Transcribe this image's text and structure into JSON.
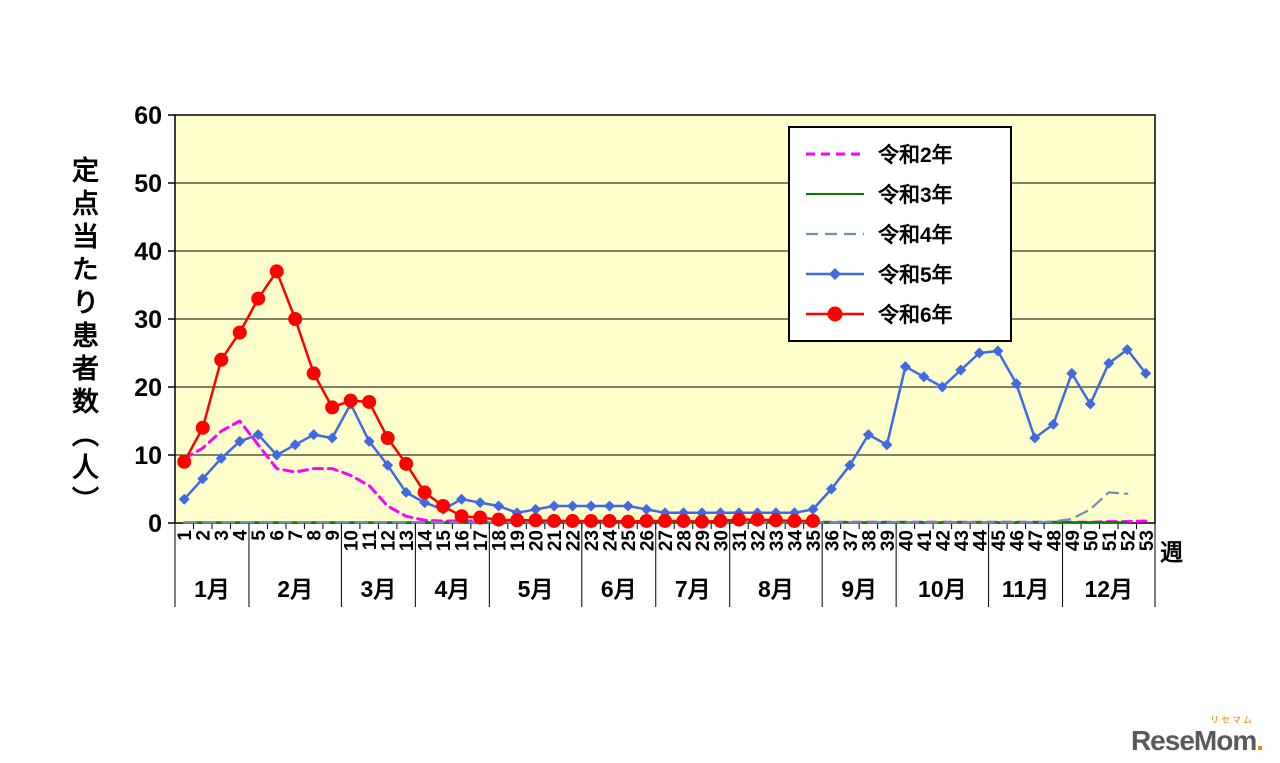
{
  "chart_data": {
    "type": "line",
    "title": "",
    "ylabel": "定点当たり患者数（人）",
    "xlabel": "週",
    "ylim": [
      0,
      60
    ],
    "yticks": [
      0,
      10,
      20,
      30,
      40,
      50,
      60
    ],
    "grid": "horizontal",
    "legend_position": "top-right-inside",
    "colors": {
      "plot_background": "#ffffcc",
      "axis": "#000000"
    },
    "x_labels": [
      "1",
      "2",
      "3",
      "4",
      "5",
      "6",
      "7",
      "8",
      "9",
      "10",
      "11",
      "12",
      "13",
      "14",
      "15",
      "16",
      "17",
      "18",
      "19",
      "20",
      "21",
      "22",
      "23",
      "24",
      "25",
      "26",
      "27",
      "28",
      "29",
      "30",
      "31",
      "32",
      "33",
      "34",
      "35",
      "36",
      "37",
      "38",
      "39",
      "40",
      "41",
      "42",
      "43",
      "44",
      "45",
      "46",
      "47",
      "48",
      "49",
      "50",
      "51",
      "52",
      "53"
    ],
    "months": [
      {
        "label": "1月",
        "span": 4
      },
      {
        "label": "2月",
        "span": 5
      },
      {
        "label": "3月",
        "span": 4
      },
      {
        "label": "4月",
        "span": 4
      },
      {
        "label": "5月",
        "span": 5
      },
      {
        "label": "6月",
        "span": 4
      },
      {
        "label": "7月",
        "span": 4
      },
      {
        "label": "8月",
        "span": 5
      },
      {
        "label": "9月",
        "span": 4
      },
      {
        "label": "10月",
        "span": 5
      },
      {
        "label": "11月",
        "span": 4
      },
      {
        "label": "12月",
        "span": 5
      }
    ],
    "series": [
      {
        "id": "reiwa2",
        "name": "令和2年",
        "color": "#ff00ff",
        "style": "dashed",
        "dash": "9 6",
        "width": 3,
        "marker": "none",
        "values": [
          9.5,
          11,
          13.5,
          15,
          11.5,
          8,
          7.5,
          8,
          8,
          7,
          5.5,
          2.5,
          1,
          0.4,
          0.3,
          0.3,
          0.3,
          0.2,
          0.2,
          0.2,
          0.1,
          0.1,
          0.1,
          0.1,
          0.1,
          0.1,
          0.1,
          0.1,
          0.1,
          0.1,
          0.1,
          0.1,
          0.1,
          0.1,
          0.1,
          0.1,
          0.1,
          0.1,
          0.1,
          0.1,
          0.1,
          0.1,
          0.1,
          0.1,
          0.1,
          0.1,
          0.1,
          0.1,
          0.1,
          0.1,
          0.2,
          0.2,
          0.3
        ]
      },
      {
        "id": "reiwa3",
        "name": "令和3年",
        "color": "#008000",
        "style": "solid",
        "width": 2,
        "marker": "none",
        "values": [
          0.1,
          0.1,
          0.1,
          0.1,
          0.1,
          0.1,
          0.1,
          0.1,
          0.1,
          0.1,
          0.1,
          0.1,
          0.1,
          0.1,
          0.1,
          0.1,
          0.1,
          0.1,
          0.1,
          0.1,
          0.1,
          0.1,
          0.1,
          0.1,
          0.1,
          0.1,
          0.1,
          0.1,
          0.1,
          0.1,
          0.1,
          0.1,
          0.1,
          0.1,
          0.1,
          0.1,
          0.1,
          0.1,
          0.1,
          0.1,
          0.1,
          0.1,
          0.1,
          0.1,
          0.1,
          0.1,
          0.1,
          0.1,
          0.1,
          0.1,
          0.1,
          0.1
        ]
      },
      {
        "id": "reiwa4",
        "name": "令和4年",
        "color": "#6e8fb4",
        "style": "dashed",
        "dash": "12 7",
        "width": 2.2,
        "marker": "none",
        "values": [
          0.1,
          0.1,
          0.1,
          0.1,
          0.1,
          0.1,
          0.1,
          0.1,
          0.1,
          0.1,
          0.1,
          0.1,
          0.1,
          0.1,
          0.1,
          0.1,
          0.1,
          0.1,
          0.1,
          0.1,
          0.1,
          0.1,
          0.1,
          0.1,
          0.1,
          0.1,
          0.1,
          0.1,
          0.1,
          0.1,
          0.1,
          0.1,
          0.1,
          0.1,
          0.1,
          0.1,
          0.1,
          0.1,
          0.1,
          0.1,
          0.1,
          0.1,
          0.1,
          0.1,
          0.1,
          0.1,
          0.1,
          0.2,
          0.6,
          2,
          4.5,
          4.3
        ]
      },
      {
        "id": "reiwa5",
        "name": "令和5年",
        "color": "#4169e1",
        "style": "solid",
        "width": 2.5,
        "marker": "diamond",
        "values": [
          3.5,
          6.5,
          9.5,
          12,
          13,
          10,
          11.5,
          13,
          12.5,
          17.5,
          12,
          8.5,
          4.5,
          3,
          2,
          3.5,
          3,
          2.5,
          1.5,
          2,
          2.5,
          2.5,
          2.5,
          2.5,
          2.5,
          2,
          1.5,
          1.5,
          1.5,
          1.5,
          1.5,
          1.5,
          1.5,
          1.5,
          2,
          5,
          8.5,
          13,
          11.5,
          23,
          21.5,
          20,
          22.5,
          25,
          25.3,
          20.5,
          12.5,
          14.5,
          22,
          17.5,
          23.5,
          25.5,
          22
        ]
      },
      {
        "id": "reiwa6",
        "name": "令和6年",
        "color": "#ff0000",
        "style": "solid",
        "width": 2.5,
        "marker": "circle",
        "values": [
          9,
          14,
          24,
          28,
          33,
          37,
          30,
          22,
          17,
          18,
          17.8,
          12.5,
          8.7,
          4.5,
          2.5,
          1,
          0.8,
          0.5,
          0.4,
          0.4,
          0.3,
          0.3,
          0.3,
          0.3,
          0.2,
          0.3,
          0.3,
          0.3,
          0.2,
          0.3,
          0.5,
          0.5,
          0.4,
          0.3,
          0.3,
          null,
          null,
          null,
          null,
          null,
          null,
          null,
          null,
          null,
          null,
          null,
          null,
          null,
          null,
          null,
          null,
          null,
          null
        ]
      }
    ]
  },
  "logo": {
    "text": "ReseMom",
    "dot": ".",
    "furigana": "リセマム"
  }
}
